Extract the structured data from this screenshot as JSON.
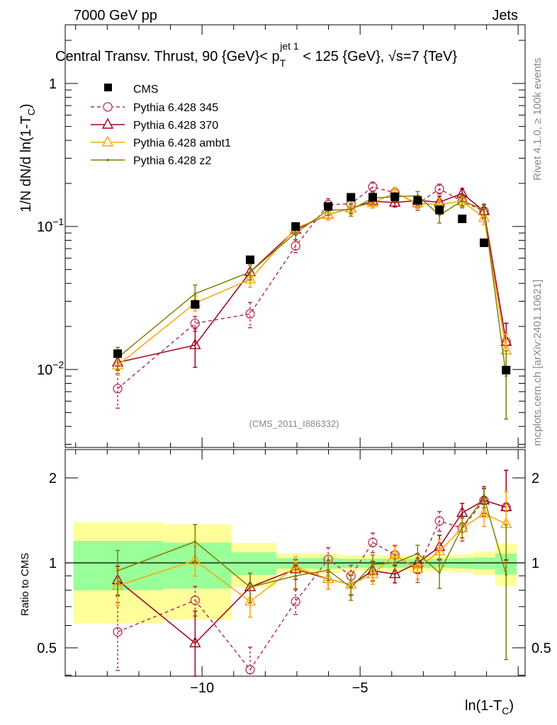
{
  "header": {
    "left": "7000 GeV pp",
    "right": "Jets",
    "title": "Central Transv. Thrust, 90 {GeV}< p",
    "title_sub": "T",
    "title_sup": "jet 1",
    "title_rest": " < 125 {GeV}, √s=7 {TeV}"
  },
  "side": {
    "rivet": "Rivet 4.1.0, ≥ 100k events",
    "mcplots": "mcplots.cern.ch [arXiv:2401.10621]"
  },
  "analysis_tag": "(CMS_2011_I886332)",
  "chart_data": [
    {
      "type": "line",
      "panel": "main",
      "ylabel": "1/N  dN/d ln(1-T_C)",
      "ylabel_main": "1/N   dN/d ln(1-T",
      "ylabel_sub": "C",
      "ylabel_end": ")",
      "yscale": "log",
      "ylim": [
        0.00285,
        2.57
      ],
      "xlim": [
        -14.33,
        0.22
      ],
      "yticks": [
        {
          "v": 1,
          "label": "1"
        },
        {
          "v": 0.1,
          "label": "10",
          "exp": "−1"
        },
        {
          "v": 0.01,
          "label": "10",
          "exp": "−2"
        }
      ],
      "legend_position": "top-left",
      "x": [
        -12.67,
        -10.22,
        -8.48,
        -7.04,
        -6.01,
        -5.29,
        -4.6,
        -3.9,
        -3.18,
        -2.49,
        -1.77,
        -1.08,
        -0.38
      ],
      "data": {
        "name": "CMS",
        "values": [
          0.0129,
          0.0285,
          0.0585,
          0.1,
          0.138,
          0.16,
          0.16,
          0.161,
          0.152,
          0.13,
          0.113,
          0.0769,
          0.0099
        ]
      },
      "series": [
        {
          "name": "Pythia 6.428 345",
          "color": "#b8304f",
          "dashed": true,
          "marker": "circle",
          "values": [
            0.00735,
            0.021,
            0.0245,
            0.073,
            0.142,
            0.144,
            0.189,
            0.172,
            0.144,
            0.183,
            0.15,
            0.128,
            0.0156
          ],
          "rel_err": [
            0.27,
            0.12,
            0.2,
            0.1,
            0.1,
            0.09,
            0.08,
            0.08,
            0.1,
            0.08,
            0.1,
            0.12,
            0.35
          ]
        },
        {
          "name": "Pythia 6.428 370",
          "color": "#a0001c",
          "dashed": false,
          "marker": "triangle",
          "values": [
            0.0112,
            0.0148,
            0.048,
            0.095,
            0.121,
            0.134,
            0.15,
            0.147,
            0.152,
            0.148,
            0.17,
            0.128,
            0.0156
          ],
          "rel_err": [
            0.12,
            0.3,
            0.12,
            0.08,
            0.08,
            0.08,
            0.08,
            0.07,
            0.08,
            0.1,
            0.08,
            0.1,
            0.35
          ]
        },
        {
          "name": "Pythia 6.428 ambt1",
          "color": "#ffa500",
          "dashed": false,
          "marker": "triangle",
          "values": [
            0.0107,
            0.0291,
            0.0427,
            0.097,
            0.121,
            0.134,
            0.146,
            0.172,
            0.145,
            0.143,
            0.15,
            0.115,
            0.0136
          ],
          "rel_err": [
            0.15,
            0.12,
            0.12,
            0.08,
            0.08,
            0.09,
            0.08,
            0.07,
            0.08,
            0.1,
            0.08,
            0.1,
            0.3
          ]
        },
        {
          "name": "Pythia 6.428 z2",
          "color": "#808000",
          "dashed": false,
          "marker": "dot",
          "values": [
            0.0121,
            0.0339,
            0.048,
            0.09,
            0.13,
            0.131,
            0.158,
            0.161,
            0.164,
            0.12,
            0.151,
            0.131,
            0.009
          ],
          "rel_err": [
            0.18,
            0.15,
            0.12,
            0.1,
            0.08,
            0.1,
            0.08,
            0.07,
            0.07,
            0.12,
            0.08,
            0.08,
            0.5
          ]
        }
      ]
    },
    {
      "type": "line",
      "panel": "ratio",
      "ylabel": "Ratio to CMS",
      "yscale": "log",
      "ylim": [
        0.397,
        2.52
      ],
      "xlabel": "ln(1-T",
      "xlabel_sub": "C",
      "xlabel_end": ")",
      "xticks": [
        {
          "v": -10,
          "label": "−10"
        },
        {
          "v": -5,
          "label": "−5"
        }
      ],
      "yticks": [
        {
          "v": 2,
          "label": "2"
        },
        {
          "v": 1,
          "label": "1"
        },
        {
          "v": 0.5,
          "label": "0.5"
        }
      ],
      "bands": {
        "edges": [
          -14.07,
          -11.23,
          -9.08,
          -7.65,
          -6.52,
          -5.65,
          -4.96,
          -4.24,
          -3.54,
          -2.85,
          -2.13,
          -1.43,
          -0.73,
          -0.04
        ],
        "yellow_hi": [
          1.39,
          1.37,
          1.175,
          1.08,
          1.08,
          1.065,
          1.065,
          1.065,
          1.065,
          1.065,
          1.07,
          1.095,
          1.17
        ],
        "yellow_lo": [
          0.61,
          0.63,
          0.82,
          0.917,
          0.917,
          0.935,
          0.935,
          0.935,
          0.935,
          0.935,
          0.925,
          0.905,
          0.83
        ],
        "green_hi": [
          1.196,
          1.18,
          1.09,
          1.04,
          1.04,
          1.035,
          1.035,
          1.035,
          1.035,
          1.035,
          1.04,
          1.045,
          1.08
        ],
        "green_lo": [
          0.8,
          0.81,
          0.906,
          0.955,
          0.955,
          0.96,
          0.96,
          0.96,
          0.96,
          0.96,
          0.955,
          0.95,
          0.91
        ],
        "yellow_color": "#ffff99",
        "green_color": "#99ff99"
      }
    }
  ]
}
